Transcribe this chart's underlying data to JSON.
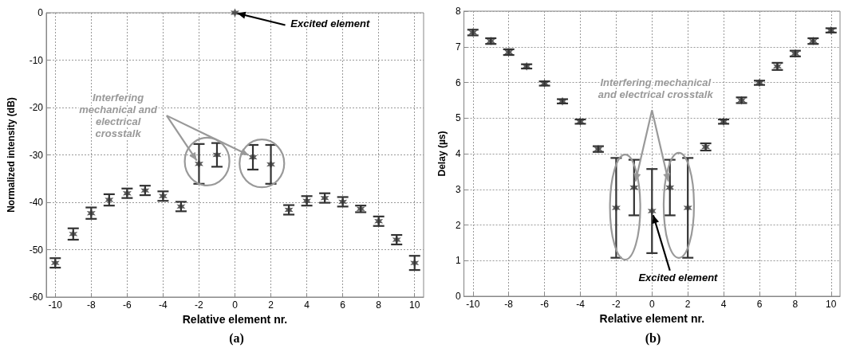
{
  "chart_data": [
    {
      "type": "scatter",
      "title": "(a)",
      "xlabel": "Relative element nr.",
      "ylabel": "Normalized intensity (dB)",
      "x": [
        -10,
        -9,
        -8,
        -7,
        -6,
        -5,
        -4,
        -3,
        -2,
        -1,
        0,
        1,
        2,
        3,
        4,
        5,
        6,
        7,
        8,
        9,
        10
      ],
      "values": [
        -52.8,
        -46.7,
        -42.3,
        -39.5,
        -38.1,
        -37.5,
        -38.7,
        -40.9,
        -31.9,
        -30.0,
        0,
        -30.5,
        -32.0,
        -41.6,
        -39.7,
        -39.1,
        -39.9,
        -41.4,
        -44.0,
        -47.9,
        -52.8
      ],
      "errors": [
        1.0,
        1.2,
        1.2,
        1.2,
        1.0,
        1.0,
        1.0,
        1.0,
        4.2,
        2.5,
        null,
        2.6,
        4.1,
        1.0,
        1.0,
        1.0,
        1.0,
        0.7,
        1.0,
        1.0,
        1.5
      ],
      "color": "#333333",
      "marker": "cross",
      "grid": true,
      "xlim": [
        -10.5,
        10.5
      ],
      "xticks": [
        -10,
        -8,
        -6,
        -4,
        -2,
        0,
        2,
        4,
        6,
        8,
        10
      ],
      "ylim": [
        -60,
        0
      ],
      "yticks": [
        -60,
        -50,
        -40,
        -30,
        -20,
        -10,
        0
      ],
      "annotations": [
        {
          "text": "Excited element",
          "x": 0,
          "y": 0
        },
        {
          "text": "Interfering mechanical and electrical crosstalk",
          "x": -2,
          "y": -31.9
        }
      ]
    },
    {
      "type": "scatter",
      "title": "(b)",
      "xlabel": "Relative element nr.",
      "ylabel": "Delay (µs)",
      "x": [
        -10,
        -9,
        -8,
        -7,
        -6,
        -5,
        -4,
        -3,
        -2,
        -1,
        0,
        1,
        2,
        3,
        4,
        5,
        6,
        7,
        8,
        9,
        10
      ],
      "values": [
        7.4,
        7.16,
        6.85,
        6.45,
        5.97,
        5.47,
        4.9,
        4.13,
        2.48,
        3.05,
        2.39,
        3.05,
        2.48,
        4.19,
        4.9,
        5.5,
        5.99,
        6.45,
        6.81,
        7.16,
        7.46
      ],
      "errors": [
        0.08,
        0.08,
        0.08,
        0.06,
        0.06,
        0.06,
        0.06,
        0.08,
        1.4,
        0.78,
        1.18,
        0.78,
        1.4,
        0.1,
        0.06,
        0.08,
        0.06,
        0.1,
        0.08,
        0.08,
        0.06
      ],
      "color": "#333333",
      "marker": "cross",
      "grid": true,
      "xlim": [
        -10.5,
        10.5
      ],
      "xticks": [
        -10,
        -8,
        -6,
        -4,
        -2,
        0,
        2,
        4,
        6,
        8,
        10
      ],
      "ylim": [
        0,
        8
      ],
      "yticks": [
        0,
        1,
        2,
        3,
        4,
        5,
        6,
        7,
        8
      ],
      "annotations": [
        {
          "text": "Excited element",
          "x": 0,
          "y": 2.39
        },
        {
          "text": "Interfering mechanical and electrical crosstalk",
          "x": -1,
          "y": 3.05
        }
      ]
    }
  ]
}
